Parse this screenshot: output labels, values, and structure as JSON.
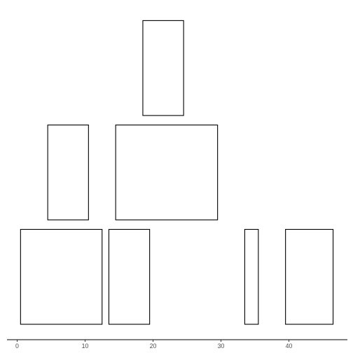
{
  "chart_data": {
    "type": "tile",
    "xlim": [
      -1.5,
      46.8
    ],
    "ylim": [
      0,
      3
    ],
    "grid": false,
    "x_ticks": [
      0,
      10,
      20,
      30,
      40
    ],
    "x_tick_labels": [
      "0",
      "10",
      "20",
      "30",
      "40"
    ],
    "rects": [
      {
        "xmin": 0.5,
        "xmax": 12.5,
        "ymin": 0,
        "ymax": 1
      },
      {
        "xmin": 13.5,
        "xmax": 19.5,
        "ymin": 0,
        "ymax": 1
      },
      {
        "xmin": 33.5,
        "xmax": 35.5,
        "ymin": 0,
        "ymax": 1
      },
      {
        "xmin": 39.5,
        "xmax": 46.5,
        "ymin": 0,
        "ymax": 1
      },
      {
        "xmin": 4.5,
        "xmax": 10.5,
        "ymin": 1.1,
        "ymax": 2.1
      },
      {
        "xmin": 14.5,
        "xmax": 29.5,
        "ymin": 1.1,
        "ymax": 2.1
      },
      {
        "xmin": 18.5,
        "xmax": 24.5,
        "ymin": 2.2,
        "ymax": 3.2
      }
    ]
  }
}
